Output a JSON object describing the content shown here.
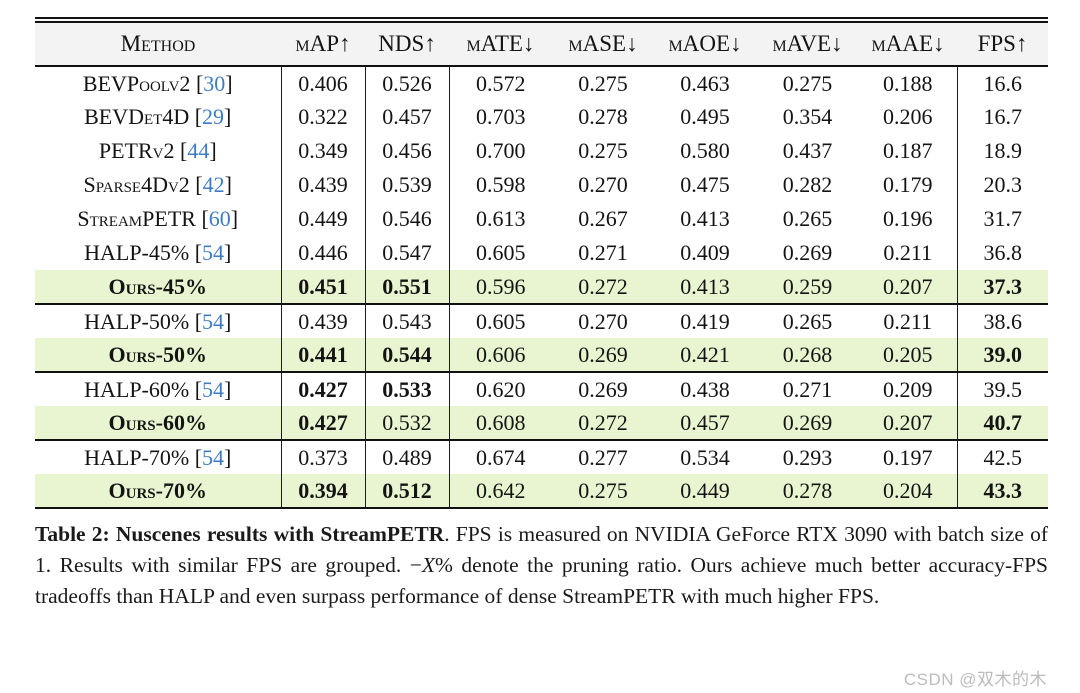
{
  "colors": {
    "highlight_bg": "#e8f5d0",
    "header_bg": "#f3f3f3",
    "citation_blue": "#3e7cc6",
    "rule_black": "#111111",
    "watermark_gray": "#bcbcbc"
  },
  "table": {
    "columns": [
      "Method",
      "mAP↑",
      "NDS↑",
      "mATE↓",
      "mASE↓",
      "mAOE↓",
      "mAVE↓",
      "mAAE↓",
      "FPS↑"
    ],
    "groups": [
      {
        "rows": [
          {
            "method": "BEVPoolv2",
            "cite": "30",
            "bold_method": false,
            "highlight": false,
            "values": [
              "0.406",
              "0.526",
              "0.572",
              "0.275",
              "0.463",
              "0.275",
              "0.188",
              "16.6"
            ],
            "bold": []
          },
          {
            "method": "BEVDet4D",
            "cite": "29",
            "bold_method": false,
            "highlight": false,
            "values": [
              "0.322",
              "0.457",
              "0.703",
              "0.278",
              "0.495",
              "0.354",
              "0.206",
              "16.7"
            ],
            "bold": []
          },
          {
            "method": "PETRv2",
            "cite": "44",
            "bold_method": false,
            "highlight": false,
            "values": [
              "0.349",
              "0.456",
              "0.700",
              "0.275",
              "0.580",
              "0.437",
              "0.187",
              "18.9"
            ],
            "bold": []
          },
          {
            "method": "Sparse4Dv2",
            "cite": "42",
            "bold_method": false,
            "highlight": false,
            "values": [
              "0.439",
              "0.539",
              "0.598",
              "0.270",
              "0.475",
              "0.282",
              "0.179",
              "20.3"
            ],
            "bold": []
          },
          {
            "method": "StreamPETR",
            "cite": "60",
            "bold_method": false,
            "highlight": false,
            "values": [
              "0.449",
              "0.546",
              "0.613",
              "0.267",
              "0.413",
              "0.265",
              "0.196",
              "31.7"
            ],
            "bold": []
          },
          {
            "method": "HALP-45%",
            "cite": "54",
            "bold_method": false,
            "highlight": false,
            "values": [
              "0.446",
              "0.547",
              "0.605",
              "0.271",
              "0.409",
              "0.269",
              "0.211",
              "36.8"
            ],
            "bold": []
          },
          {
            "method": "Ours-45%",
            "cite": null,
            "bold_method": true,
            "highlight": true,
            "values": [
              "0.451",
              "0.551",
              "0.596",
              "0.272",
              "0.413",
              "0.259",
              "0.207",
              "37.3"
            ],
            "bold": [
              0,
              1,
              7
            ]
          }
        ]
      },
      {
        "rows": [
          {
            "method": "HALP-50%",
            "cite": "54",
            "bold_method": false,
            "highlight": false,
            "values": [
              "0.439",
              "0.543",
              "0.605",
              "0.270",
              "0.419",
              "0.265",
              "0.211",
              "38.6"
            ],
            "bold": []
          },
          {
            "method": "Ours-50%",
            "cite": null,
            "bold_method": true,
            "highlight": true,
            "values": [
              "0.441",
              "0.544",
              "0.606",
              "0.269",
              "0.421",
              "0.268",
              "0.205",
              "39.0"
            ],
            "bold": [
              0,
              1,
              7
            ]
          }
        ]
      },
      {
        "rows": [
          {
            "method": "HALP-60%",
            "cite": "54",
            "bold_method": false,
            "highlight": false,
            "values": [
              "0.427",
              "0.533",
              "0.620",
              "0.269",
              "0.438",
              "0.271",
              "0.209",
              "39.5"
            ],
            "bold": [
              0,
              1
            ]
          },
          {
            "method": "Ours-60%",
            "cite": null,
            "bold_method": true,
            "highlight": true,
            "values": [
              "0.427",
              "0.532",
              "0.608",
              "0.272",
              "0.457",
              "0.269",
              "0.207",
              "40.7"
            ],
            "bold": [
              0,
              7
            ]
          }
        ]
      },
      {
        "rows": [
          {
            "method": "HALP-70%",
            "cite": "54",
            "bold_method": false,
            "highlight": false,
            "values": [
              "0.373",
              "0.489",
              "0.674",
              "0.277",
              "0.534",
              "0.293",
              "0.197",
              "42.5"
            ],
            "bold": []
          },
          {
            "method": "Ours-70%",
            "cite": null,
            "bold_method": true,
            "highlight": true,
            "values": [
              "0.394",
              "0.512",
              "0.642",
              "0.275",
              "0.449",
              "0.278",
              "0.204",
              "43.3"
            ],
            "bold": [
              0,
              1,
              7
            ]
          }
        ]
      }
    ]
  },
  "caption": {
    "bold_lead": "Table 2: Nuscenes results with StreamPETR",
    "after_bold": ". FPS is measured on NVIDIA GeForce RTX 3090 with batch size of 1. Results with similar FPS are grouped. −",
    "italic_x": "X",
    "tail": "% denote the pruning ratio. Ours achieve much better accuracy-FPS tradeoffs than HALP and even surpass performance of dense StreamPETR with much higher FPS."
  },
  "watermark": {
    "text": "CSDN @双木的木"
  }
}
